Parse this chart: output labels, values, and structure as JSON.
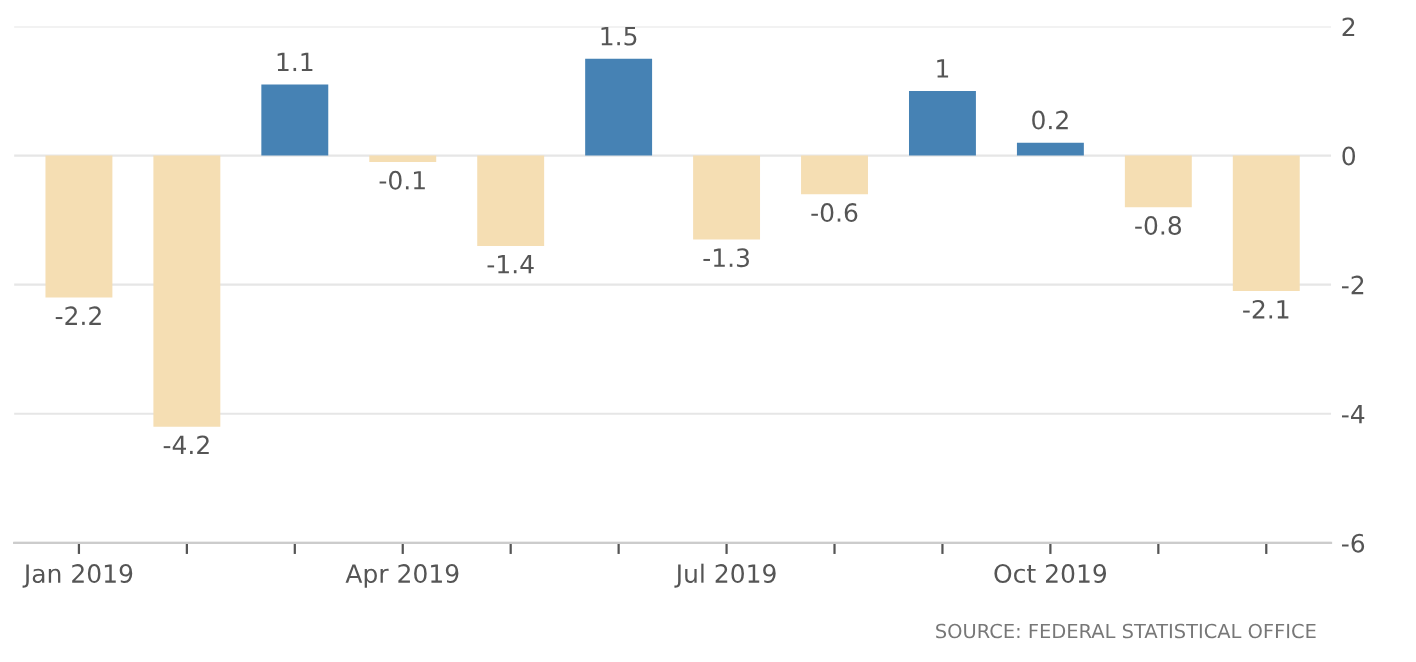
{
  "chart_data": {
    "type": "bar",
    "categories": [
      "Jan 2019",
      null,
      null,
      "Apr 2019",
      null,
      null,
      "Jul 2019",
      null,
      null,
      "Oct 2019",
      null,
      null
    ],
    "values": [
      -2.2,
      -4.2,
      1.1,
      -0.1,
      -1.4,
      1.5,
      -1.3,
      -0.6,
      1,
      0.2,
      -0.8,
      -2.1
    ],
    "colors": [
      "#f5deb3",
      "#f5deb3",
      "#4682b4",
      "#f5deb3",
      "#f5deb3",
      "#4682b4",
      "#f5deb3",
      "#f5deb3",
      "#4682b4",
      "#4682b4",
      "#f5deb3",
      "#f5deb3"
    ],
    "ylim": [
      -6,
      2
    ],
    "yticks": [
      -6,
      -4,
      -2,
      0,
      2
    ],
    "grid": "y",
    "data_labels": true,
    "annotations": [
      "SOURCE: FEDERAL STATISTICAL OFFICE"
    ]
  }
}
